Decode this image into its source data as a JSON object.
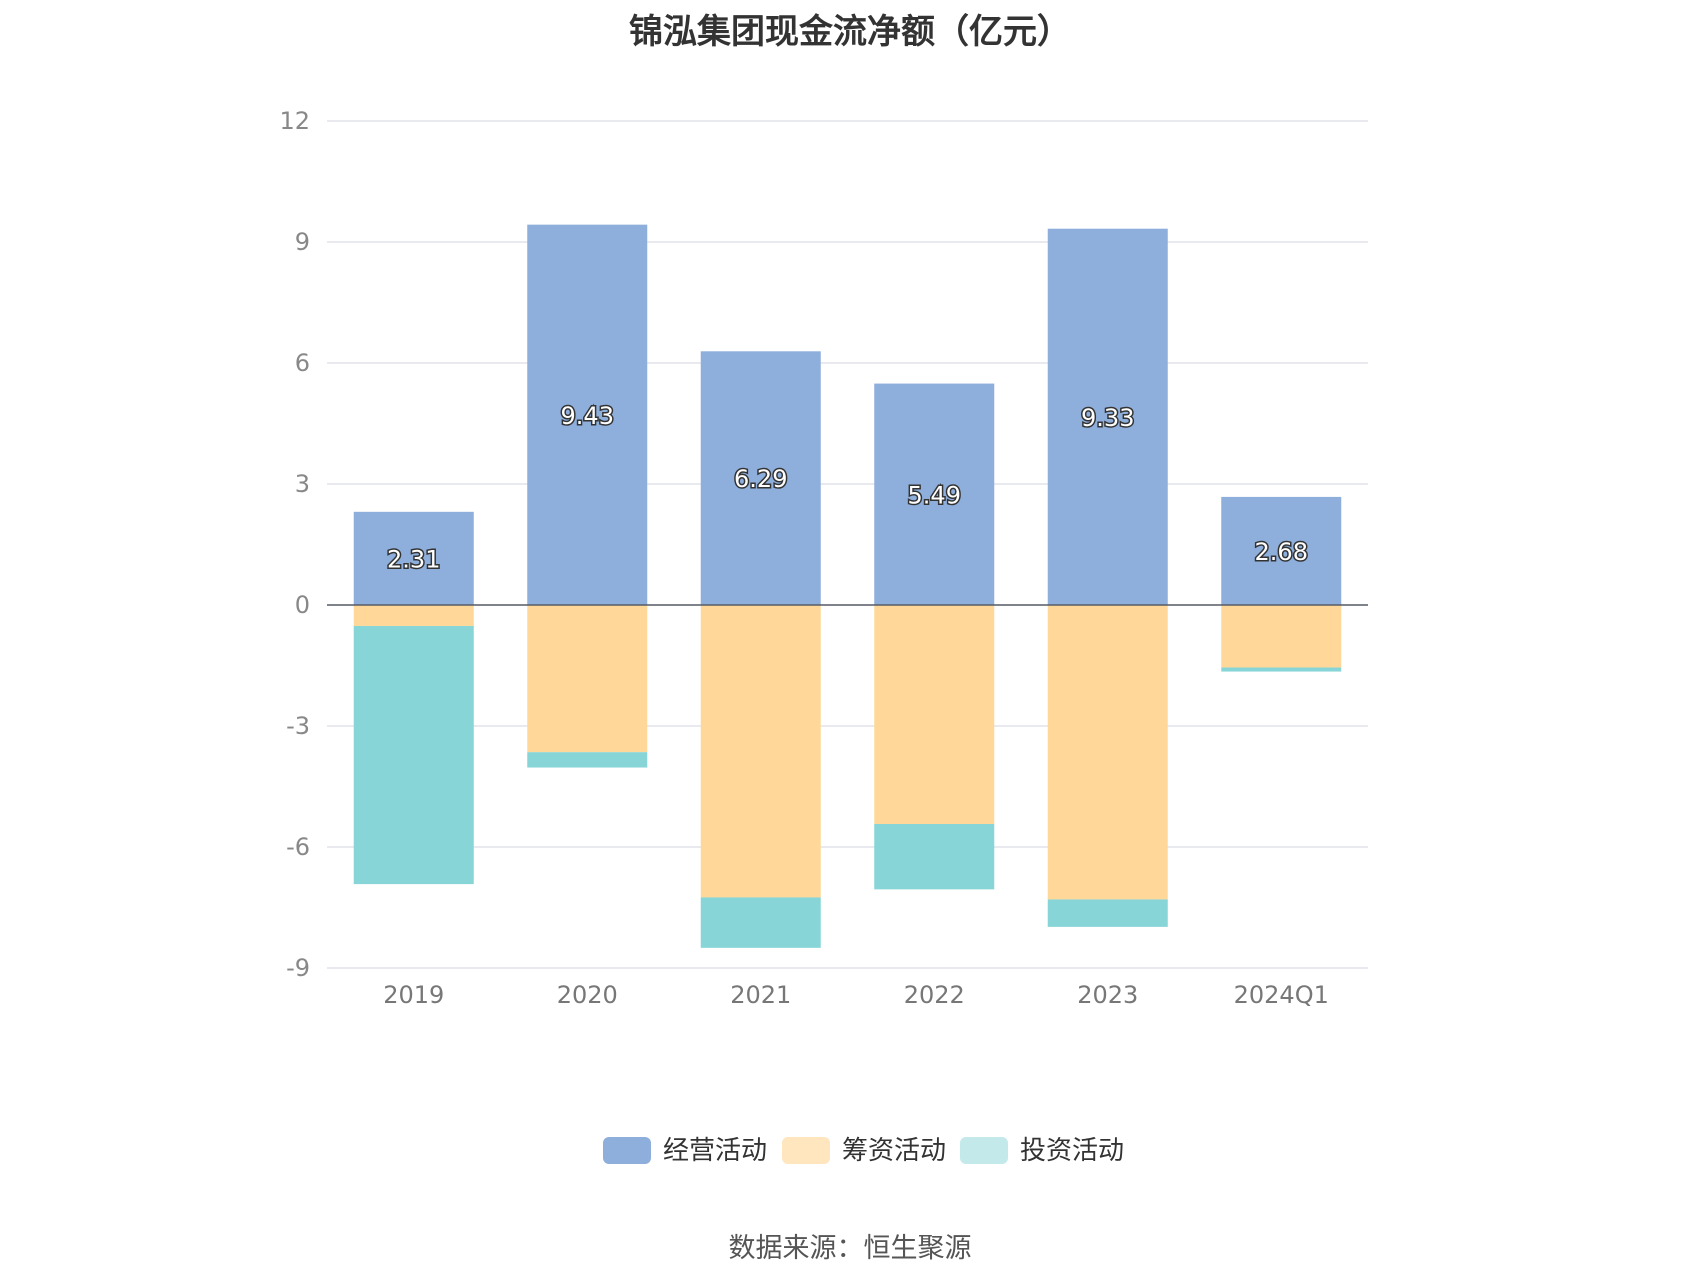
{
  "title": "锦泓集团现金流净额（亿元）",
  "source": "数据来源：恒生聚源",
  "chart_data": {
    "type": "bar",
    "stacked": true,
    "title": "锦泓集团现金流净额（亿元）",
    "categories": [
      "2019",
      "2020",
      "2021",
      "2022",
      "2023",
      "2024Q1"
    ],
    "ylim": [
      -9,
      12
    ],
    "yticks": [
      12,
      9,
      6,
      3,
      0,
      -3,
      -6,
      -9
    ],
    "grid": true,
    "legend_position": "bottom",
    "series": [
      {
        "name": "经营活动",
        "color": "#8eaedb",
        "values": [
          2.31,
          9.43,
          6.29,
          5.49,
          9.33,
          2.68
        ],
        "labels": [
          "2.31",
          "9.43",
          "6.29",
          "5.49",
          "9.33",
          "2.68"
        ]
      },
      {
        "name": "筹资活动",
        "color": "#ffd899",
        "values": [
          -0.52,
          -3.65,
          -7.25,
          -5.43,
          -7.3,
          -1.55
        ],
        "labels": []
      },
      {
        "name": "投资活动",
        "color": "#87d5d7",
        "values": [
          -6.4,
          -0.38,
          -1.25,
          -1.62,
          -0.68,
          -0.1
        ],
        "labels": []
      }
    ]
  }
}
